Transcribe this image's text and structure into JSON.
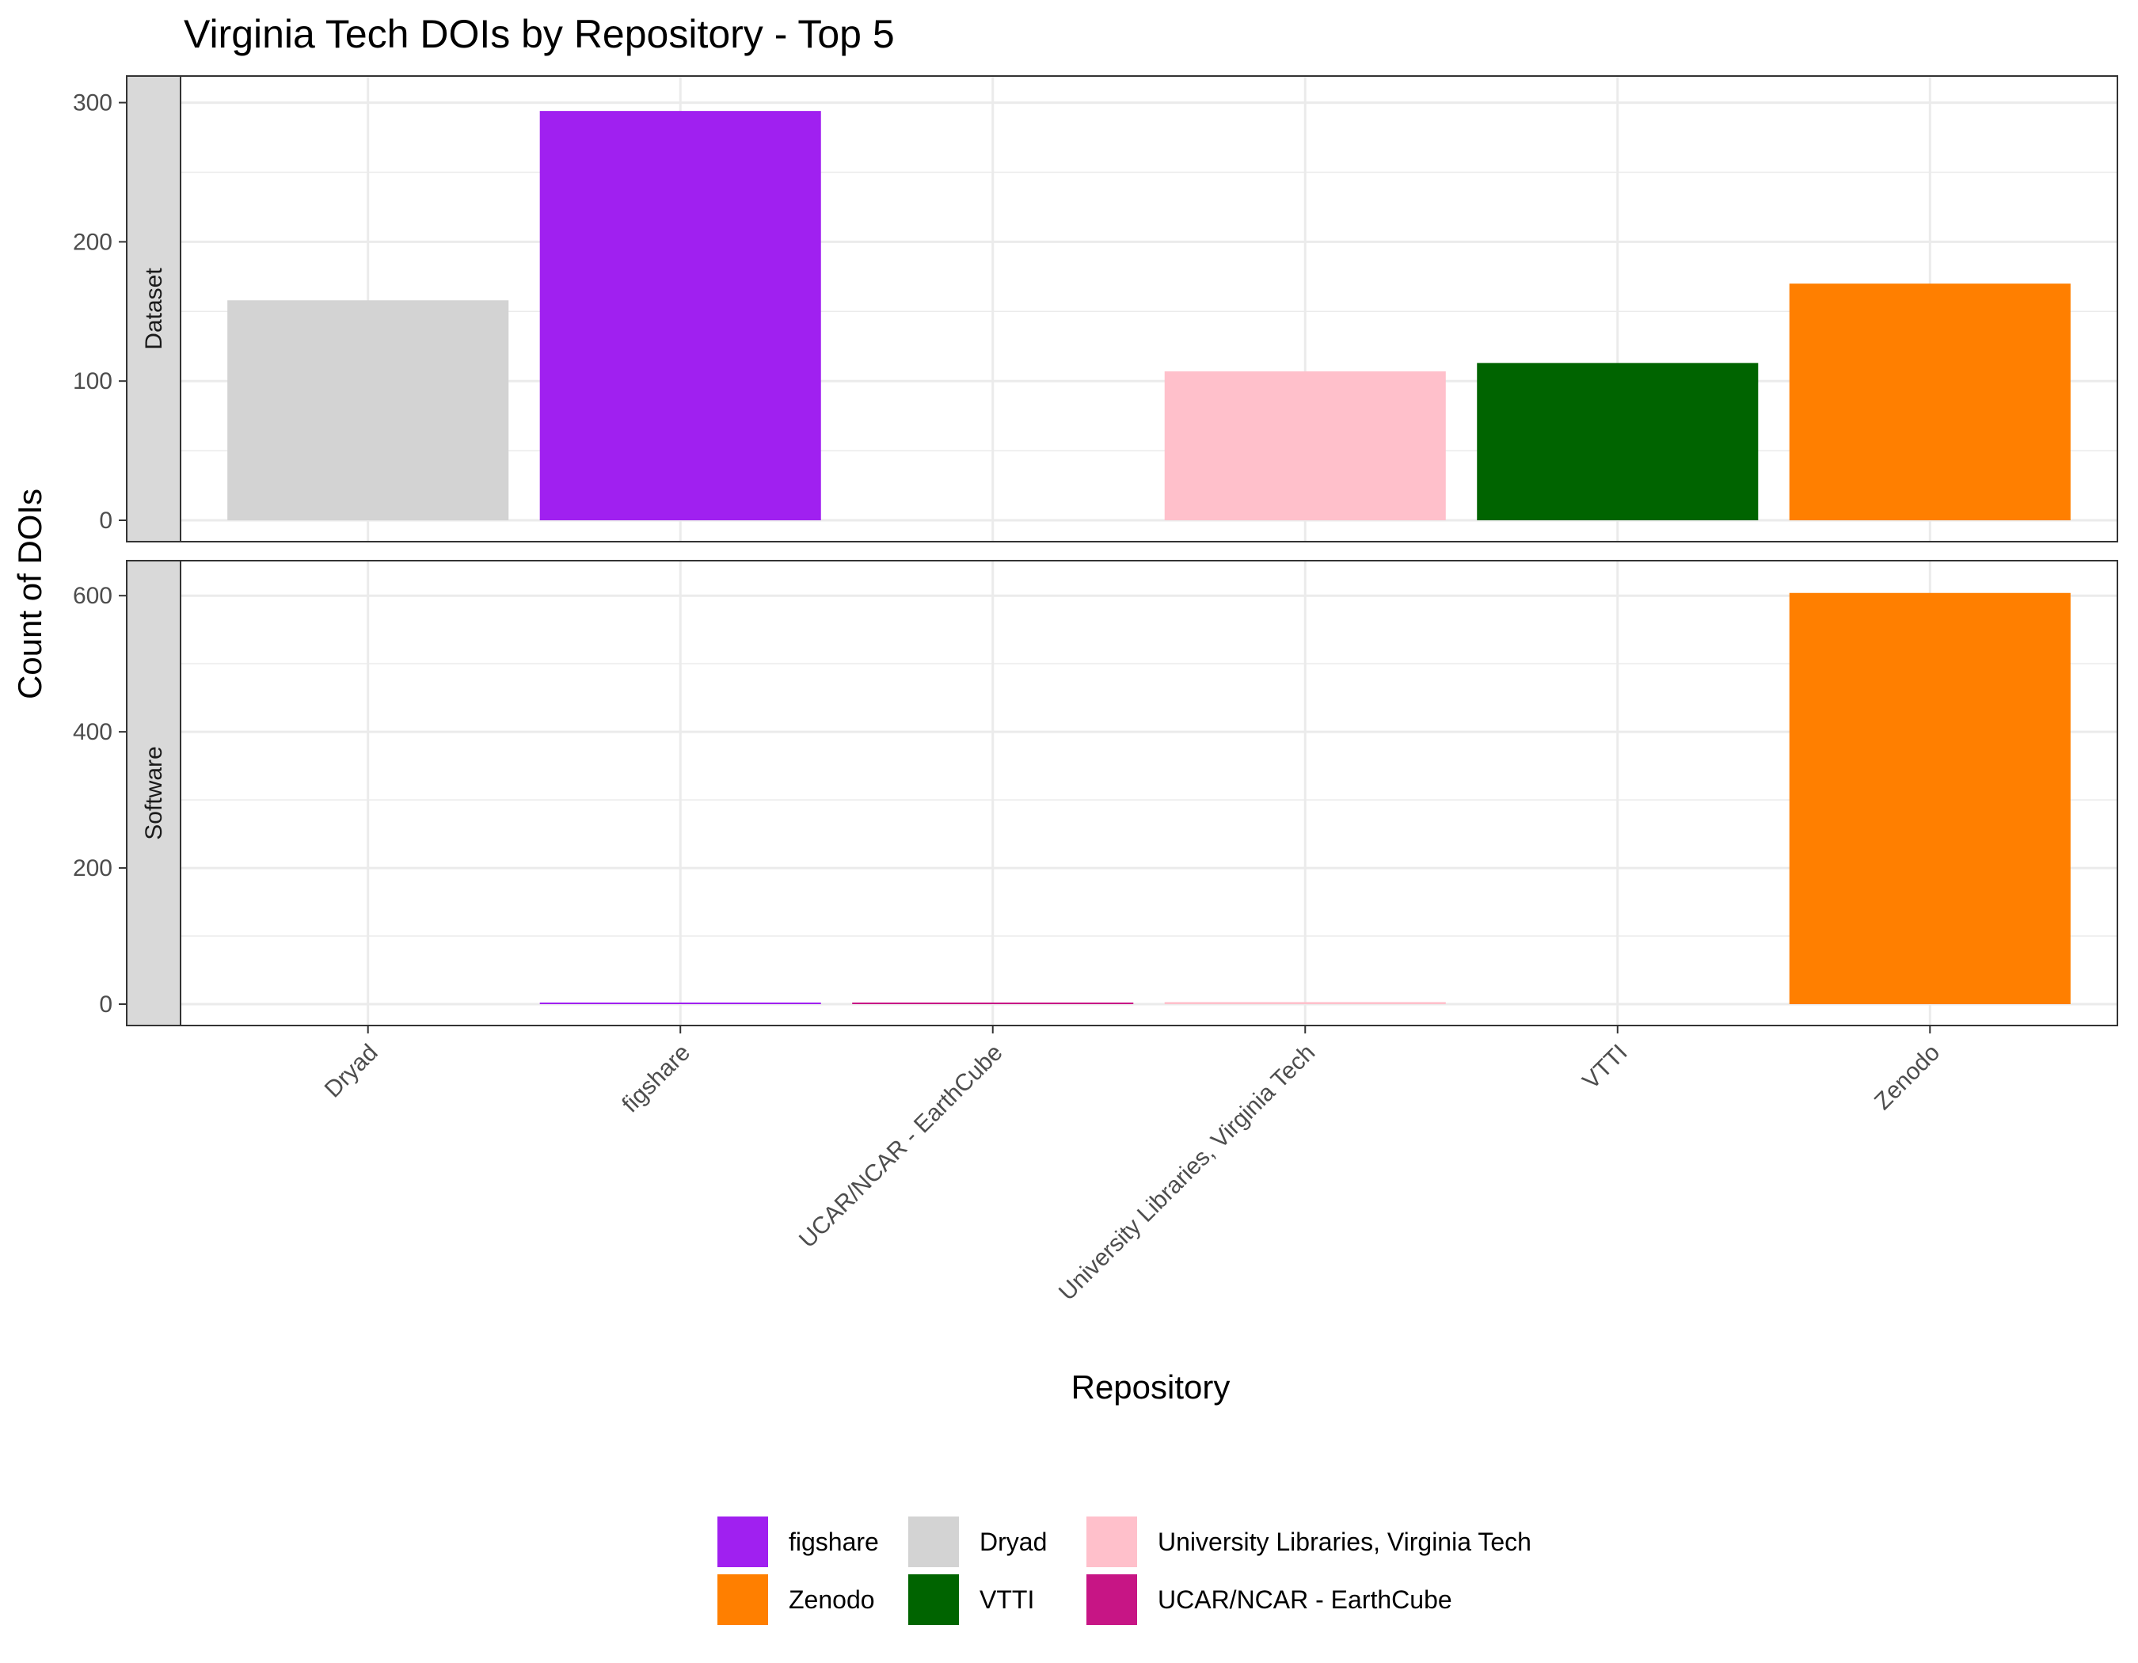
{
  "chart_data": {
    "type": "bar",
    "title": "Virginia Tech DOIs by Repository - Top 5",
    "xlabel": "Repository",
    "ylabel": "Count of DOIs",
    "categories": [
      "Dryad",
      "figshare",
      "UCAR/NCAR - EarthCube",
      "University Libraries, Virginia Tech",
      "VTTI",
      "Zenodo"
    ],
    "facets": [
      {
        "label": "Dataset",
        "ylim": [
          0,
          310
        ],
        "yticks": [
          0,
          100,
          200,
          300
        ],
        "values": [
          158,
          294,
          0,
          107,
          113,
          170
        ]
      },
      {
        "label": "Software",
        "ylim": [
          0,
          620
        ],
        "yticks": [
          0,
          200,
          400,
          600
        ],
        "values": [
          0,
          2,
          1,
          3,
          0,
          604
        ]
      }
    ],
    "colors": {
      "Dryad": "#d3d3d3",
      "figshare": "#a020f0",
      "UCAR/NCAR - EarthCube": "#c71585",
      "University Libraries, Virginia Tech": "#ffc0cb",
      "VTTI": "#006400",
      "Zenodo": "#ff7f00"
    },
    "legend": {
      "position": "bottom",
      "entries": [
        {
          "label": "figshare",
          "color": "#a020f0"
        },
        {
          "label": "Zenodo",
          "color": "#ff7f00"
        },
        {
          "label": "Dryad",
          "color": "#d3d3d3"
        },
        {
          "label": "VTTI",
          "color": "#006400"
        },
        {
          "label": "University Libraries, Virginia Tech",
          "color": "#ffc0cb"
        },
        {
          "label": "UCAR/NCAR - EarthCube",
          "color": "#c71585"
        }
      ]
    },
    "grid": true
  }
}
